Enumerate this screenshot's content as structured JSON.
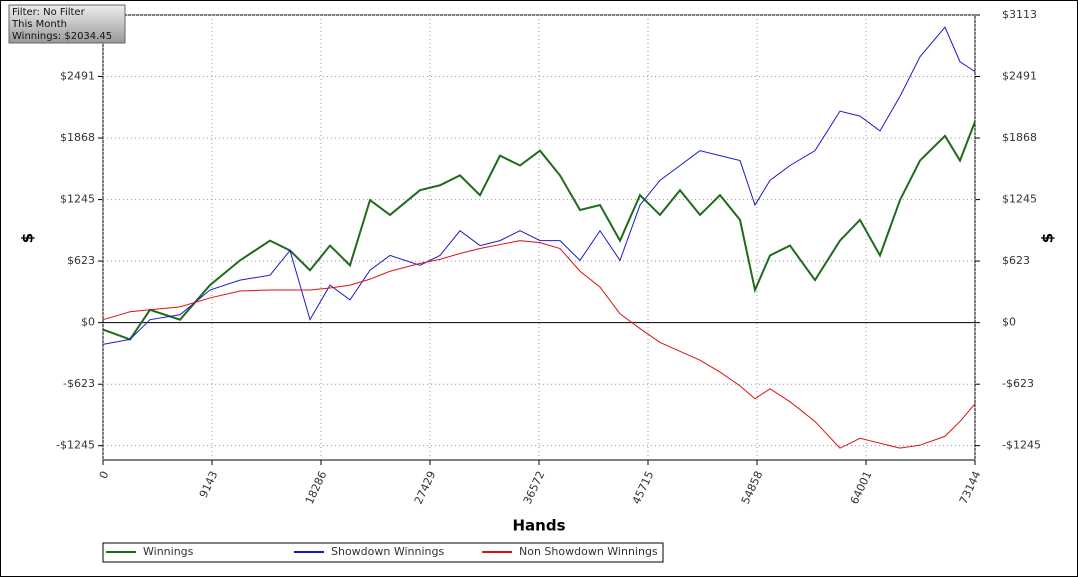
{
  "chart_data": {
    "type": "line",
    "info": [
      "Filter: No Filter",
      "This Month",
      "Winnings: $2034.45"
    ],
    "x_label": "Hands",
    "y_label": "$",
    "y2_label": "$",
    "x": [
      0,
      2265,
      3942,
      6459,
      8975,
      11492,
      14008,
      15686,
      17363,
      19041,
      20718,
      22396,
      24074,
      26590,
      28268,
      29945,
      31623,
      33300,
      34978,
      36656,
      38333,
      40011,
      41689,
      43366,
      45044,
      46721,
      48399,
      50076,
      51754,
      53432,
      54690,
      55948,
      57626,
      59722,
      61819,
      63497,
      65175,
      66852,
      68530,
      70627,
      71885,
      73144
    ],
    "series": [
      {
        "name": "Winnings",
        "color": "#1e6b1e",
        "values": [
          -70,
          -170,
          130,
          30,
          380,
          630,
          830,
          730,
          530,
          780,
          580,
          1240,
          1090,
          1340,
          1390,
          1490,
          1290,
          1690,
          1590,
          1740,
          1490,
          1140,
          1190,
          830,
          1290,
          1090,
          1340,
          1090,
          1290,
          1040,
          330,
          680,
          780,
          430,
          830,
          1040,
          680,
          1240,
          1640,
          1890,
          1640,
          2034
        ]
      },
      {
        "name": "Showdown Winnings",
        "color": "#1a1acc",
        "values": [
          -220,
          -170,
          30,
          80,
          330,
          430,
          480,
          730,
          30,
          380,
          230,
          530,
          680,
          580,
          680,
          930,
          780,
          830,
          930,
          830,
          830,
          630,
          930,
          630,
          1190,
          1440,
          1590,
          1740,
          1690,
          1640,
          1190,
          1440,
          1590,
          1740,
          2140,
          2090,
          1940,
          2290,
          2690,
          2990,
          2640,
          2540
        ]
      },
      {
        "name": "Non Showdown Winnings",
        "color": "#dd1111",
        "values": [
          30,
          110,
          130,
          160,
          250,
          320,
          330,
          330,
          330,
          350,
          380,
          440,
          520,
          600,
          640,
          700,
          750,
          790,
          830,
          810,
          750,
          520,
          360,
          90,
          -60,
          -200,
          -290,
          -380,
          -500,
          -640,
          -770,
          -670,
          -800,
          -1000,
          -1270,
          -1170,
          -1220,
          -1270,
          -1240,
          -1150,
          -1000,
          -820
        ]
      }
    ],
    "xlim": [
      0,
      73144
    ],
    "xticks": [
      0,
      9143,
      18286,
      27429,
      36572,
      45715,
      54858,
      64001,
      73144
    ],
    "ylim": [
      -1390,
      3113
    ],
    "yticks": [
      {
        "value": -1245,
        "label": "-$1245"
      },
      {
        "value": -623,
        "label": "-$623"
      },
      {
        "value": 0,
        "label": "$0"
      },
      {
        "value": 623,
        "label": "$623"
      },
      {
        "value": 1245,
        "label": "$1245"
      },
      {
        "value": 1868,
        "label": "$1868"
      },
      {
        "value": 2491,
        "label": "$2491"
      },
      {
        "value": 3113,
        "label": "$3113"
      }
    ],
    "grid": true
  }
}
